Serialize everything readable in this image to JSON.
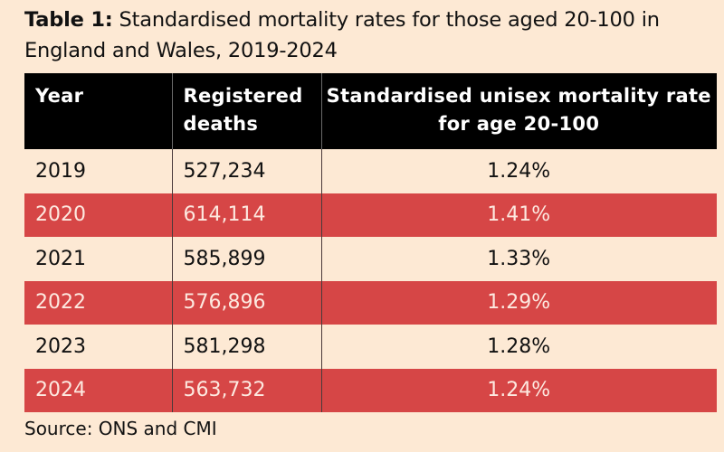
{
  "title": {
    "label": "Table 1:",
    "text": " Standardised mortality rates for those aged 20-100 in England and Wales, 2019-2024"
  },
  "table": {
    "headers": [
      "Year",
      "Registered deaths",
      "Standardised unisex mortality rate for age 20-100"
    ],
    "rows": [
      {
        "year": "2019",
        "deaths": "527,234",
        "rate": "1.24%"
      },
      {
        "year": "2020",
        "deaths": "614,114",
        "rate": "1.41%"
      },
      {
        "year": "2021",
        "deaths": "585,899",
        "rate": "1.33%"
      },
      {
        "year": "2022",
        "deaths": "576,896",
        "rate": "1.29%"
      },
      {
        "year": "2023",
        "deaths": "581,298",
        "rate": "1.28%"
      },
      {
        "year": "2024",
        "deaths": "563,732",
        "rate": "1.24%"
      }
    ]
  },
  "source": "Source: ONS and CMI",
  "colors": {
    "background": "#fde9d4",
    "header_bg": "#000000",
    "highlight_row": "#d64646"
  }
}
